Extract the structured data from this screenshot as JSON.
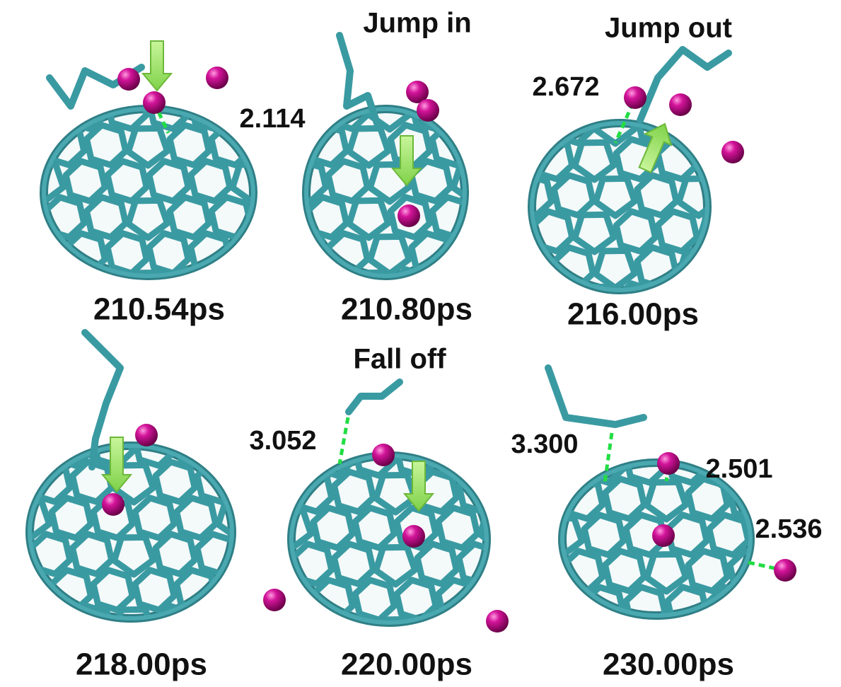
{
  "panels": [
    {
      "time": "210.54ps",
      "distances": [
        "2.114"
      ]
    },
    {
      "time": "210.80ps",
      "caption": "Jump in"
    },
    {
      "time": "216.00ps",
      "caption": "Jump out",
      "distances": [
        "2.672"
      ]
    },
    {
      "time": "218.00ps"
    },
    {
      "time": "220.00ps",
      "caption": "Fall off",
      "distances": [
        "3.052"
      ]
    },
    {
      "time": "230.00ps",
      "distances": [
        "3.300",
        "2.501",
        "2.536"
      ]
    }
  ]
}
